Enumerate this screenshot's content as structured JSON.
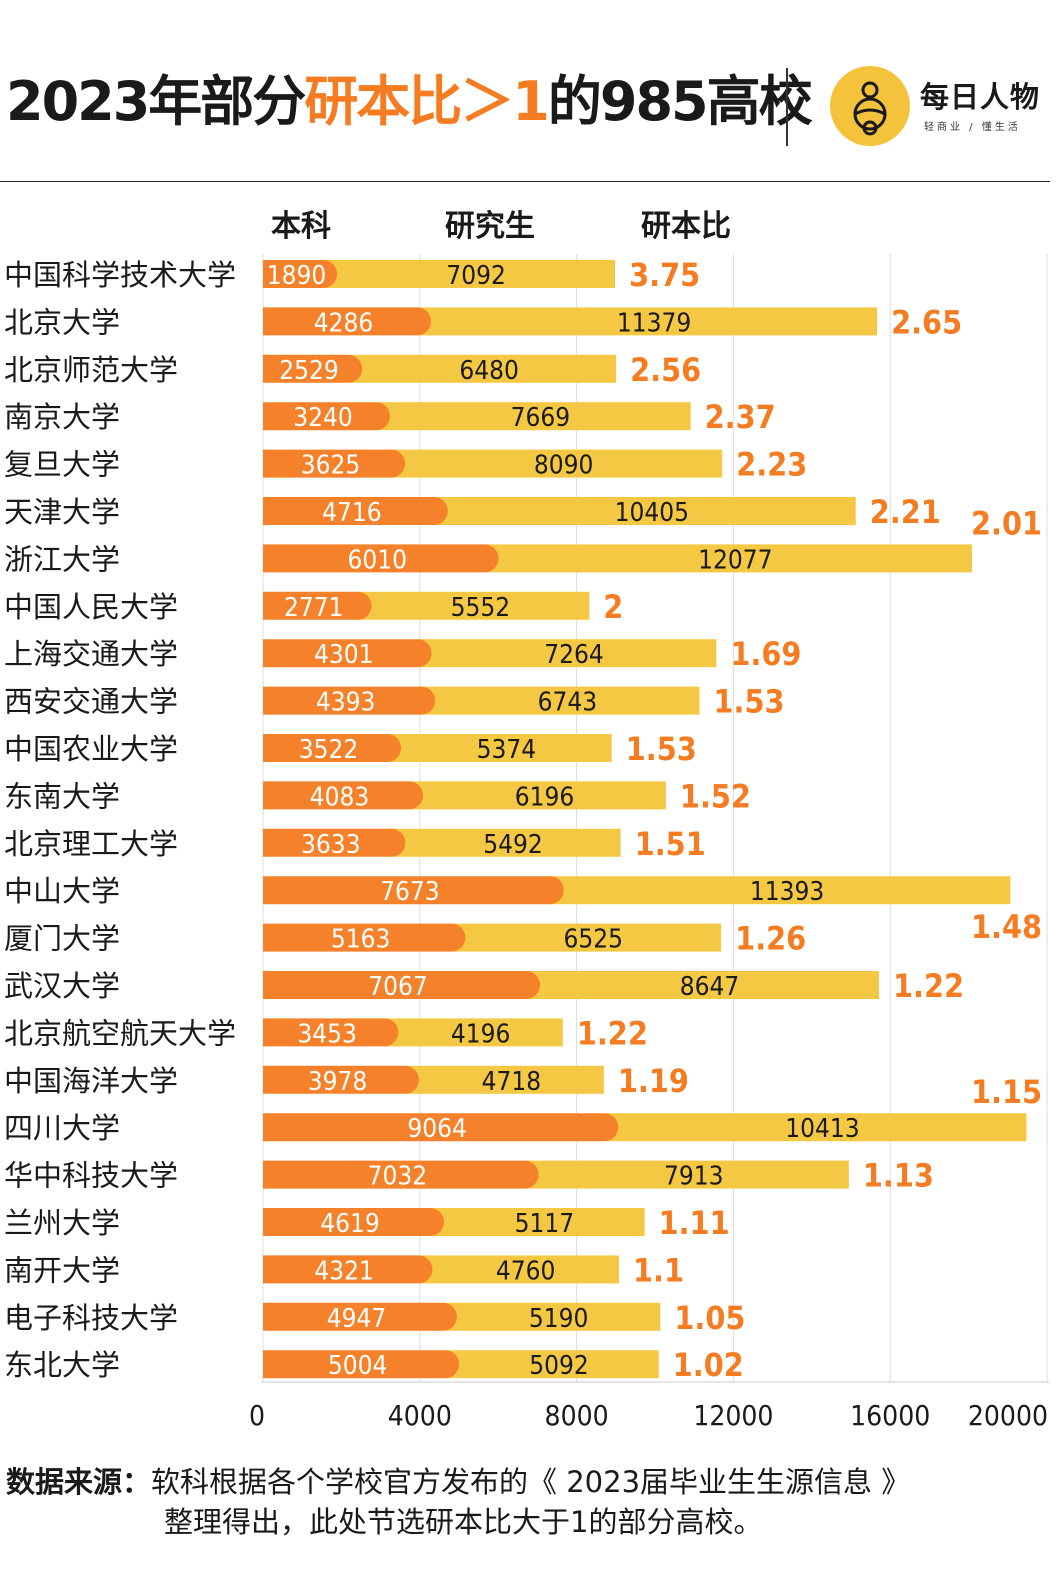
{
  "header": {
    "title_prefix": "2023年部分",
    "title_highlight": "研本比＞1",
    "title_suffix": "的985高校",
    "logo_name": "每日人物",
    "logo_slogan": "轻商业 / 懂生活"
  },
  "colors": {
    "undergrad": "#f5822a",
    "graduate": "#f5c843",
    "ratio_text": "#f57c20",
    "grid": "#dddddd"
  },
  "chart_data": {
    "type": "bar",
    "orientation": "horizontal",
    "stacked": true,
    "column_headers": [
      "本科",
      "研究生",
      "研本比"
    ],
    "categories": [
      "中国科学技术大学",
      "北京大学",
      "北京师范大学",
      "南京大学",
      "复旦大学",
      "天津大学",
      "浙江大学",
      "中国人民大学",
      "上海交通大学",
      "西安交通大学",
      "中国农业大学",
      "东南大学",
      "北京理工大学",
      "中山大学",
      "厦门大学",
      "武汉大学",
      "北京航空航天大学",
      "中国海洋大学",
      "四川大学",
      "华中科技大学",
      "兰州大学",
      "南开大学",
      "电子科技大学",
      "东北大学"
    ],
    "series": [
      {
        "name": "本科",
        "values": [
          1890,
          4286,
          2529,
          3240,
          3625,
          4716,
          6010,
          2771,
          4301,
          4393,
          3522,
          4083,
          3633,
          7673,
          5163,
          7067,
          3453,
          3978,
          9064,
          7032,
          4619,
          4321,
          4947,
          5004
        ]
      },
      {
        "name": "研究生",
        "values": [
          7092,
          11379,
          6480,
          7669,
          8090,
          10405,
          12077,
          5552,
          7264,
          6743,
          5374,
          6196,
          5492,
          11393,
          6525,
          8647,
          4196,
          4718,
          10413,
          7913,
          5117,
          4760,
          5190,
          5092
        ]
      }
    ],
    "ratio_labels": [
      "3.75",
      "2.65",
      "2.56",
      "2.37",
      "2.23",
      "2.21",
      "2.01",
      "2",
      "1.69",
      "1.53",
      "1.53",
      "1.52",
      "1.51",
      "1.48",
      "1.26",
      "1.22",
      "1.22",
      "1.19",
      "1.15",
      "1.13",
      "1.11",
      "1.1",
      "1.05",
      "1.02"
    ],
    "xlim": [
      0,
      20000
    ],
    "xticks": [
      0,
      4000,
      8000,
      12000,
      16000,
      20000
    ],
    "grid": true
  },
  "footer": {
    "source_label": "数据来源：",
    "source_text_1": "软科根据各个学校官方发布的《 2023届毕业生生源信息 》",
    "source_text_2": "整理得出，此处节选研本比大于1的部分高校。"
  }
}
